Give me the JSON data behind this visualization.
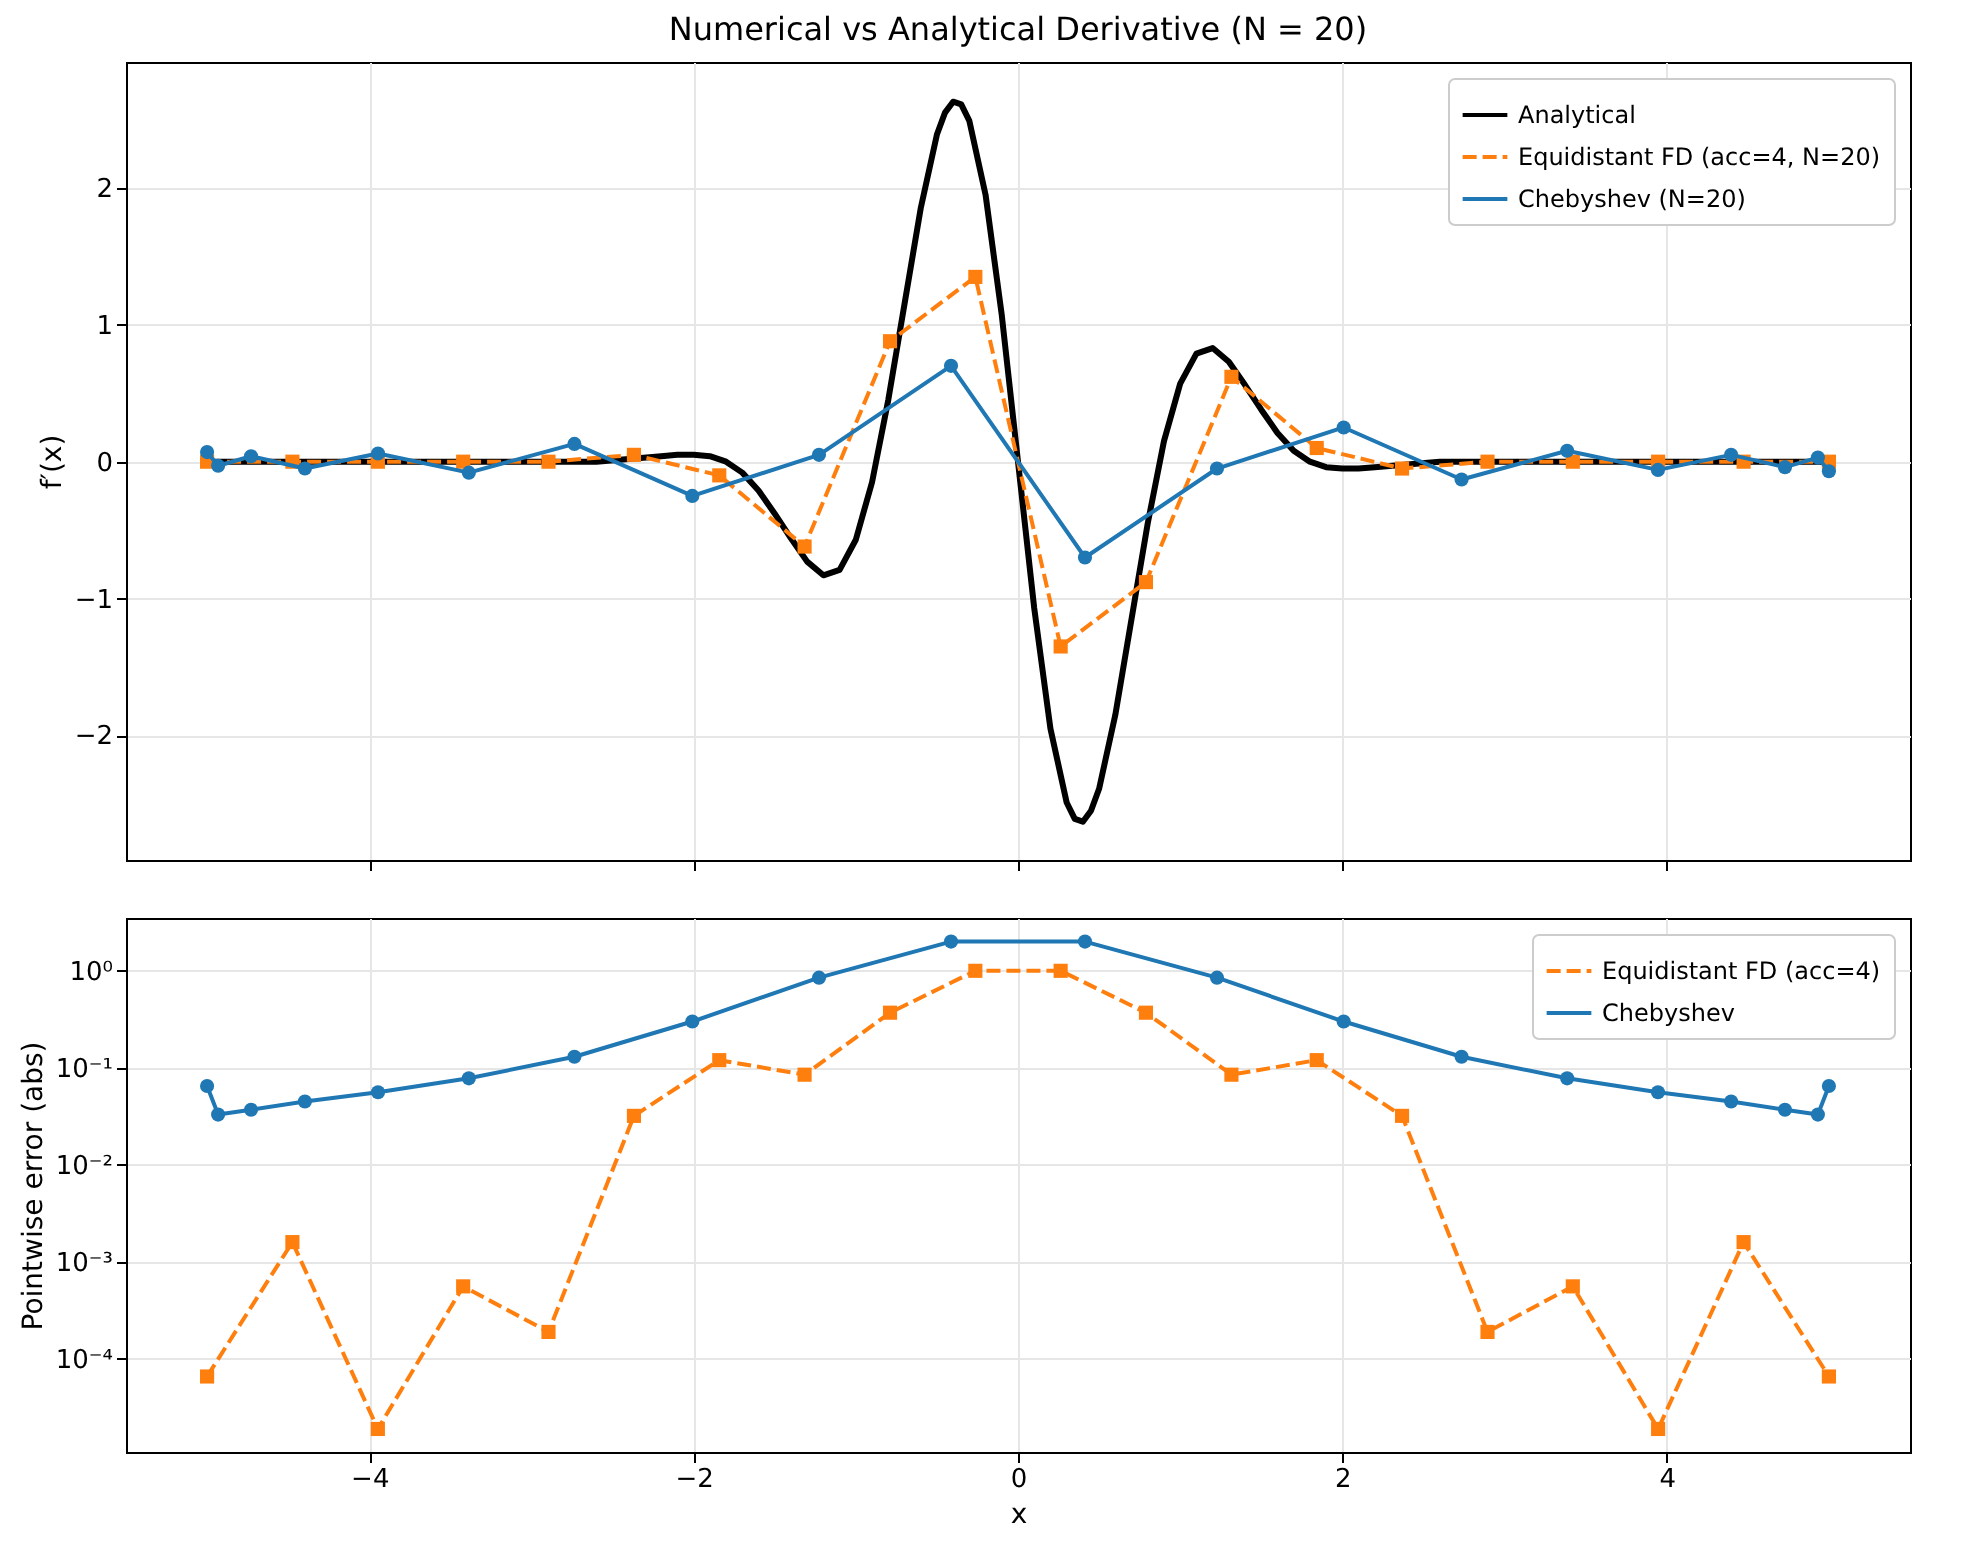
{
  "chart_data": [
    {
      "type": "line",
      "title": "Numerical vs Analytical Derivative (N = 20)",
      "ylabel": "f′(x)",
      "xlim": [
        -5.5,
        5.5
      ],
      "xticks": [
        -4,
        -2,
        0,
        2,
        4
      ],
      "ylim": [
        -2.91,
        2.92
      ],
      "yticks": [
        {
          "value": -2,
          "label": "−2"
        },
        {
          "value": -1,
          "label": "−1"
        },
        0,
        1,
        2
      ],
      "grid": true,
      "legend": "top right",
      "tick_labels": "y",
      "series": [
        {
          "name": "Analytical",
          "color": "#000000",
          "marker": "none",
          "line_style": "solid",
          "x": [
            -5,
            -4,
            -3,
            -2.6,
            -2.4,
            -2.2,
            -2.1,
            -2,
            -1.9,
            -1.8,
            -1.7,
            -1.6,
            -1.5,
            -1.4,
            -1.3,
            -1.2,
            -1.1,
            -1,
            -0.9,
            -0.8,
            -0.7,
            -0.6,
            -0.5,
            -0.45,
            -0.4,
            -0.35,
            -0.3,
            -0.2,
            -0.1,
            0,
            0.1,
            0.2,
            0.3,
            0.35,
            0.4,
            0.45,
            0.5,
            0.6,
            0.7,
            0.8,
            0.9,
            1,
            1.1,
            1.2,
            1.3,
            1.4,
            1.5,
            1.6,
            1.7,
            1.8,
            1.9,
            2,
            2.1,
            2.2,
            2.4,
            2.6,
            3,
            4,
            5
          ],
          "values": [
            0,
            0,
            0,
            0,
            0.02,
            0.04,
            0.05,
            0.05,
            0.04,
            0,
            -0.08,
            -0.21,
            -0.38,
            -0.56,
            -0.73,
            -0.83,
            -0.79,
            -0.57,
            -0.15,
            0.45,
            1.15,
            1.85,
            2.39,
            2.55,
            2.63,
            2.61,
            2.49,
            1.95,
            1.07,
            0,
            -1.07,
            -1.95,
            -2.49,
            -2.61,
            -2.63,
            -2.55,
            -2.39,
            -1.85,
            -1.15,
            -0.45,
            0.15,
            0.57,
            0.79,
            0.83,
            0.73,
            0.56,
            0.38,
            0.21,
            0.08,
            0,
            -0.04,
            -0.05,
            -0.05,
            -0.04,
            -0.02,
            0,
            0,
            0,
            0
          ]
        },
        {
          "name": "Equidistant FD (acc=4, N=20)",
          "color": "#ff7f0e",
          "marker": "square",
          "line_style": "dashed",
          "x": [
            -5,
            -4.474,
            -3.947,
            -3.421,
            -2.895,
            -2.368,
            -1.842,
            -1.316,
            -0.789,
            -0.263,
            0.263,
            0.789,
            1.316,
            1.842,
            2.368,
            2.895,
            3.421,
            3.947,
            4.474,
            5
          ],
          "values": [
            0,
            0,
            0,
            0,
            0,
            0.05,
            -0.1,
            -0.62,
            0.88,
            1.35,
            -1.35,
            -0.88,
            0.62,
            0.1,
            -0.05,
            0,
            0,
            0,
            0,
            0
          ]
        },
        {
          "name": "Chebyshev (N=20)",
          "color": "#1f77b4",
          "marker": "circle",
          "line_style": "solid",
          "x": [
            -5,
            -4.932,
            -4.729,
            -4.397,
            -3.946,
            -3.386,
            -2.735,
            -2.008,
            -1.227,
            -0.413,
            0.413,
            1.227,
            2.008,
            2.735,
            3.386,
            3.946,
            4.397,
            4.729,
            4.932,
            5
          ],
          "values": [
            0.07,
            -0.03,
            0.04,
            -0.05,
            0.06,
            -0.08,
            0.13,
            -0.25,
            0.05,
            0.7,
            -0.7,
            -0.05,
            0.25,
            -0.13,
            0.08,
            -0.06,
            0.05,
            -0.04,
            0.03,
            -0.07
          ]
        }
      ]
    },
    {
      "type": "line",
      "xlabel": "x",
      "ylabel": "Pointwise error (abs)",
      "log": "y",
      "xlim": [
        -5.5,
        5.5
      ],
      "xticks": [
        {
          "value": -4,
          "label": "−4"
        },
        {
          "value": -2,
          "label": "−2"
        },
        0,
        2,
        4
      ],
      "ylim": [
        1.1e-05,
        3.5
      ],
      "yticks": [
        {
          "value": 0.0001,
          "label": "10⁻⁴"
        },
        {
          "value": 0.001,
          "label": "10⁻³"
        },
        {
          "value": 0.01,
          "label": "10⁻²"
        },
        {
          "value": 0.1,
          "label": "10⁻¹"
        },
        {
          "value": 1,
          "label": "10⁰"
        }
      ],
      "grid": true,
      "legend": "top right",
      "series": [
        {
          "name": "Equidistant FD (acc=4)",
          "color": "#ff7f0e",
          "marker": "square",
          "line_style": "dashed",
          "x": [
            -5,
            -4.474,
            -3.947,
            -3.421,
            -2.895,
            -2.368,
            -1.842,
            -1.316,
            -0.789,
            -0.263,
            0.263,
            0.789,
            1.316,
            1.842,
            2.368,
            2.895,
            3.421,
            3.947,
            4.474,
            5
          ],
          "values": [
            6.6e-05,
            0.0016,
            1.9e-05,
            0.00056,
            0.00019,
            0.032,
            0.12,
            0.085,
            0.37,
            1.0,
            1.0,
            0.37,
            0.085,
            0.12,
            0.032,
            0.00019,
            0.00056,
            1.9e-05,
            0.0016,
            6.6e-05
          ]
        },
        {
          "name": "Chebyshev",
          "color": "#1f77b4",
          "marker": "circle",
          "line_style": "solid",
          "x": [
            -5,
            -4.932,
            -4.729,
            -4.397,
            -3.946,
            -3.386,
            -2.735,
            -2.008,
            -1.227,
            -0.413,
            0.413,
            1.227,
            2.008,
            2.735,
            3.386,
            3.946,
            4.397,
            4.729,
            4.932,
            5
          ],
          "values": [
            0.065,
            0.033,
            0.037,
            0.045,
            0.056,
            0.078,
            0.13,
            0.3,
            0.85,
            2.0,
            2.0,
            0.85,
            0.3,
            0.13,
            0.078,
            0.056,
            0.045,
            0.037,
            0.033,
            0.065
          ]
        }
      ]
    }
  ]
}
